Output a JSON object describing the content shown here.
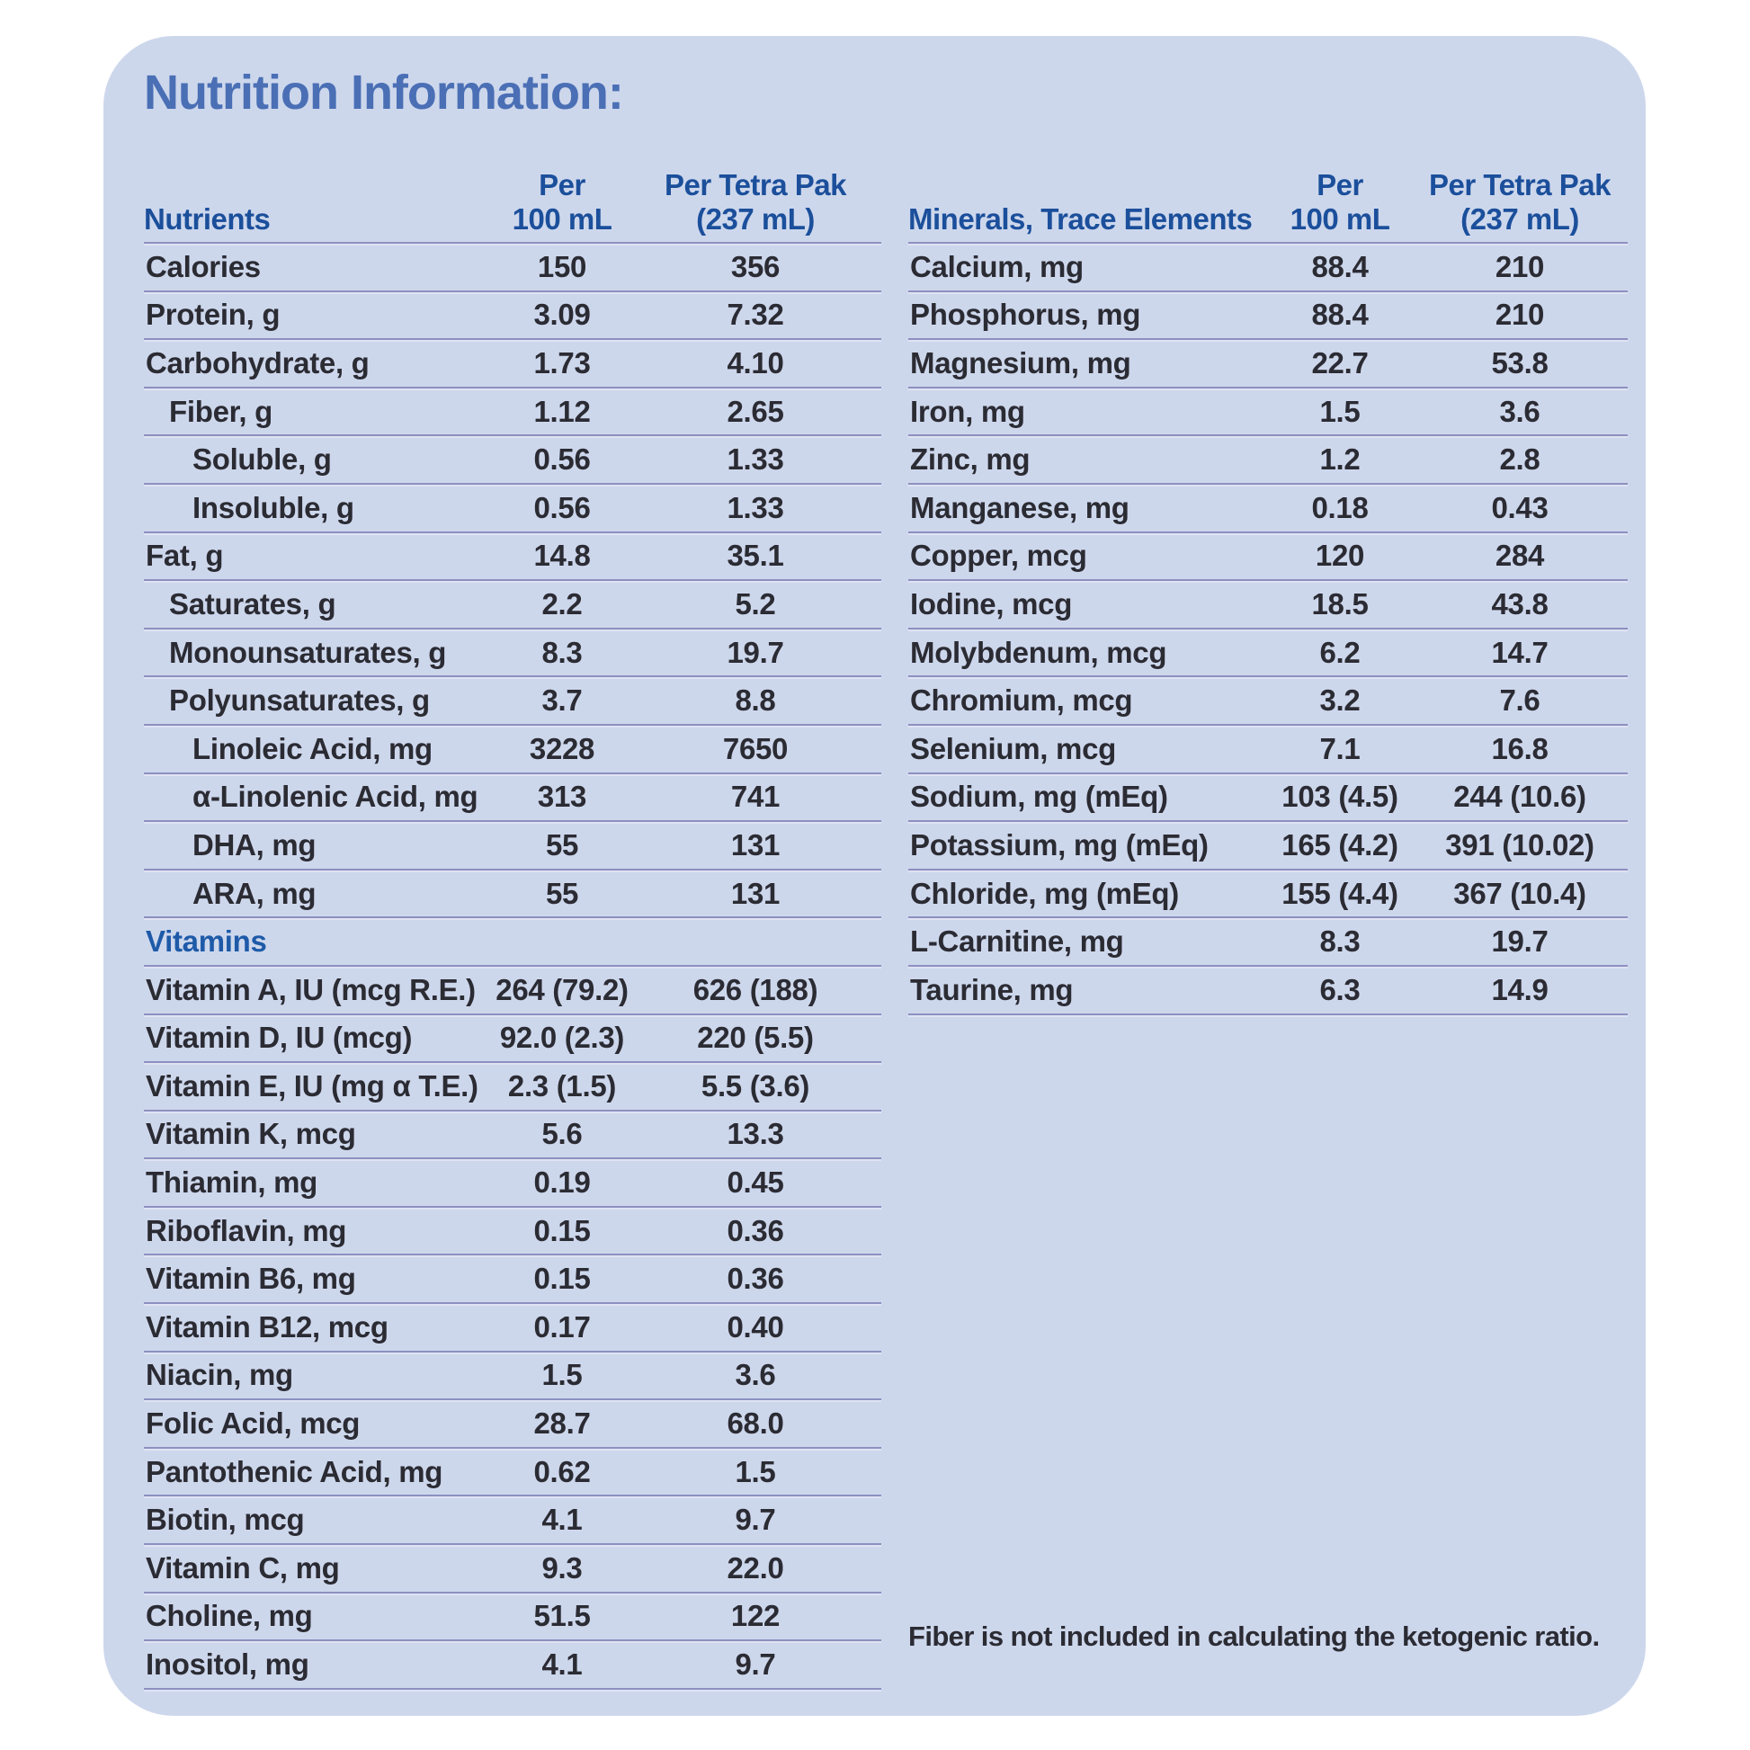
{
  "title": "Nutrition Information:",
  "footnote": "Fiber is not included in calculating the ketogenic ratio.",
  "colors": {
    "page_bg": "#ffffff",
    "card_bg": "#cdd7ec",
    "title_blue": "#4a6fb5",
    "header_blue": "#1b4f9b",
    "section_blue": "#1e5aa8",
    "body_text": "#2b2b33",
    "line": "#8d90bf",
    "line_echo": "#dfe3f3"
  },
  "left_table": {
    "header": {
      "label": "Nutrients",
      "col1_line1": "Per",
      "col1_line2": "100 mL",
      "col2_line1": "Per Tetra Pak",
      "col2_line2": "(237 mL)"
    },
    "rows": [
      {
        "label": "Calories",
        "indent": 0,
        "per_100ml": "150",
        "per_pak": "356"
      },
      {
        "label": "Protein, g",
        "indent": 0,
        "per_100ml": "3.09",
        "per_pak": "7.32"
      },
      {
        "label": "Carbohydrate, g",
        "indent": 0,
        "per_100ml": "1.73",
        "per_pak": "4.10"
      },
      {
        "label": "Fiber, g",
        "indent": 1,
        "per_100ml": "1.12",
        "per_pak": "2.65"
      },
      {
        "label": "Soluble, g",
        "indent": 2,
        "per_100ml": "0.56",
        "per_pak": "1.33"
      },
      {
        "label": "Insoluble, g",
        "indent": 2,
        "per_100ml": "0.56",
        "per_pak": "1.33"
      },
      {
        "label": "Fat, g",
        "indent": 0,
        "per_100ml": "14.8",
        "per_pak": "35.1"
      },
      {
        "label": "Saturates, g",
        "indent": 1,
        "per_100ml": "2.2",
        "per_pak": "5.2"
      },
      {
        "label": "Monounsaturates, g",
        "indent": 1,
        "per_100ml": "8.3",
        "per_pak": "19.7"
      },
      {
        "label": "Polyunsaturates, g",
        "indent": 1,
        "per_100ml": "3.7",
        "per_pak": "8.8"
      },
      {
        "label": "Linoleic Acid, mg",
        "indent": 2,
        "per_100ml": "3228",
        "per_pak": "7650"
      },
      {
        "label": "α-Linolenic Acid, mg",
        "indent": 2,
        "per_100ml": "313",
        "per_pak": "741"
      },
      {
        "label": "DHA, mg",
        "indent": 2,
        "per_100ml": "55",
        "per_pak": "131"
      },
      {
        "label": "ARA, mg",
        "indent": 2,
        "per_100ml": "55",
        "per_pak": "131"
      },
      {
        "label": "Vitamins",
        "section": true,
        "per_100ml": "",
        "per_pak": ""
      },
      {
        "label": "Vitamin A, IU (mcg R.E.)",
        "indent": 0,
        "per_100ml": "264 (79.2)",
        "per_pak": "626 (188)"
      },
      {
        "label": "Vitamin D, IU (mcg)",
        "indent": 0,
        "per_100ml": "92.0 (2.3)",
        "per_pak": "220 (5.5)"
      },
      {
        "label": "Vitamin E, IU (mg α T.E.)",
        "indent": 0,
        "per_100ml": "2.3 (1.5)",
        "per_pak": "5.5 (3.6)"
      },
      {
        "label": "Vitamin K, mcg",
        "indent": 0,
        "per_100ml": "5.6",
        "per_pak": "13.3"
      },
      {
        "label": "Thiamin, mg",
        "indent": 0,
        "per_100ml": "0.19",
        "per_pak": "0.45"
      },
      {
        "label": "Riboflavin, mg",
        "indent": 0,
        "per_100ml": "0.15",
        "per_pak": "0.36"
      },
      {
        "label": "Vitamin B6, mg",
        "indent": 0,
        "per_100ml": "0.15",
        "per_pak": "0.36"
      },
      {
        "label": "Vitamin B12, mcg",
        "indent": 0,
        "per_100ml": "0.17",
        "per_pak": "0.40"
      },
      {
        "label": "Niacin, mg",
        "indent": 0,
        "per_100ml": "1.5",
        "per_pak": "3.6"
      },
      {
        "label": "Folic Acid, mcg",
        "indent": 0,
        "per_100ml": "28.7",
        "per_pak": "68.0"
      },
      {
        "label": "Pantothenic Acid, mg",
        "indent": 0,
        "per_100ml": "0.62",
        "per_pak": "1.5"
      },
      {
        "label": "Biotin, mcg",
        "indent": 0,
        "per_100ml": "4.1",
        "per_pak": "9.7"
      },
      {
        "label": "Vitamin C, mg",
        "indent": 0,
        "per_100ml": "9.3",
        "per_pak": "22.0"
      },
      {
        "label": "Choline, mg",
        "indent": 0,
        "per_100ml": "51.5",
        "per_pak": "122"
      },
      {
        "label": "Inositol, mg",
        "indent": 0,
        "per_100ml": "4.1",
        "per_pak": "9.7"
      }
    ]
  },
  "right_table": {
    "header": {
      "label": "Minerals, Trace Elements",
      "col1_line1": "Per",
      "col1_line2": "100 mL",
      "col2_line1": "Per Tetra Pak",
      "col2_line2": "(237 mL)"
    },
    "rows": [
      {
        "label": "Calcium, mg",
        "indent": 0,
        "per_100ml": "88.4",
        "per_pak": "210"
      },
      {
        "label": "Phosphorus, mg",
        "indent": 0,
        "per_100ml": "88.4",
        "per_pak": "210"
      },
      {
        "label": "Magnesium, mg",
        "indent": 0,
        "per_100ml": "22.7",
        "per_pak": "53.8"
      },
      {
        "label": "Iron, mg",
        "indent": 0,
        "per_100ml": "1.5",
        "per_pak": "3.6"
      },
      {
        "label": "Zinc, mg",
        "indent": 0,
        "per_100ml": "1.2",
        "per_pak": "2.8"
      },
      {
        "label": "Manganese, mg",
        "indent": 0,
        "per_100ml": "0.18",
        "per_pak": "0.43"
      },
      {
        "label": "Copper, mcg",
        "indent": 0,
        "per_100ml": "120",
        "per_pak": "284"
      },
      {
        "label": "Iodine, mcg",
        "indent": 0,
        "per_100ml": "18.5",
        "per_pak": "43.8"
      },
      {
        "label": "Molybdenum, mcg",
        "indent": 0,
        "per_100ml": "6.2",
        "per_pak": "14.7"
      },
      {
        "label": "Chromium, mcg",
        "indent": 0,
        "per_100ml": "3.2",
        "per_pak": "7.6"
      },
      {
        "label": "Selenium, mcg",
        "indent": 0,
        "per_100ml": "7.1",
        "per_pak": "16.8"
      },
      {
        "label": "Sodium, mg (mEq)",
        "indent": 0,
        "per_100ml": "103 (4.5)",
        "per_pak": "244 (10.6)"
      },
      {
        "label": "Potassium, mg (mEq)",
        "indent": 0,
        "per_100ml": "165 (4.2)",
        "per_pak": "391 (10.02)"
      },
      {
        "label": "Chloride, mg (mEq)",
        "indent": 0,
        "per_100ml": "155 (4.4)",
        "per_pak": "367 (10.4)"
      },
      {
        "label": "L-Carnitine, mg",
        "indent": 0,
        "per_100ml": "8.3",
        "per_pak": "19.7"
      },
      {
        "label": "Taurine, mg",
        "indent": 0,
        "per_100ml": "6.3",
        "per_pak": "14.9"
      }
    ]
  }
}
